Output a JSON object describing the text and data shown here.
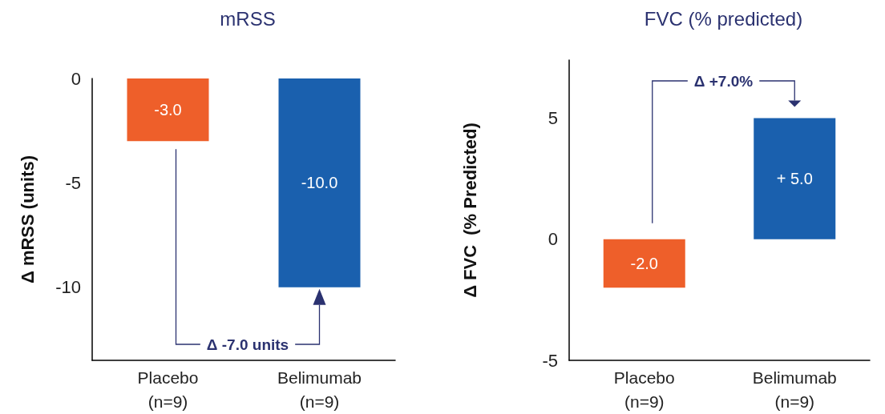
{
  "chart_data": [
    {
      "type": "bar",
      "title": "mRSS",
      "ylabel": "Δ mRSS (units)",
      "categories": [
        "Placebo\n(n=9)",
        "Belimumab\n(n=9)"
      ],
      "values": [
        -3.0,
        -10.0
      ],
      "colors": [
        "#ee5f2a",
        "#1a60ae"
      ],
      "value_labels": [
        "-3.0",
        "-10.0"
      ],
      "ylim": [
        -13.5,
        0
      ],
      "yticks": [
        -10,
        -5,
        0
      ],
      "annotations": [
        "Δ -7.0 units"
      ]
    },
    {
      "type": "bar",
      "title": "FVC (% predicted)",
      "ylabel": "Δ FVC  (% Predicted)",
      "categories": [
        "Placebo\n(n=9)",
        "Belimumab\n(n=9)"
      ],
      "values": [
        -2.0,
        5.0
      ],
      "colors": [
        "#ee5f2a",
        "#1a60ae"
      ],
      "value_labels": [
        "-2.0",
        "+ 5.0"
      ],
      "ylim": [
        -5,
        7.4
      ],
      "yticks": [
        -5,
        0,
        5
      ],
      "annotations": [
        "Δ +7.0%"
      ]
    }
  ]
}
